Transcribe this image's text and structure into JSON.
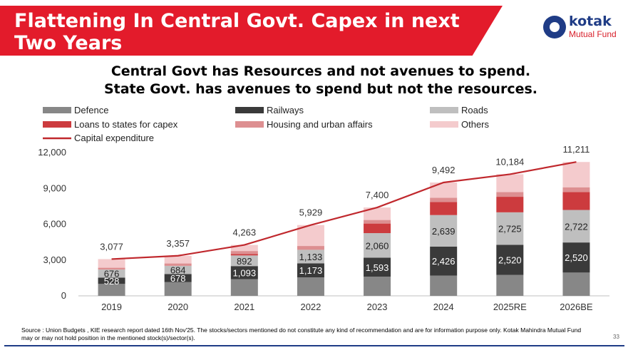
{
  "header": {
    "title": "Flattening In Central Govt. Capex in next Two Years",
    "logo_brand": "kotak",
    "logo_sub": "Mutual Fund"
  },
  "subtitle": {
    "line1": "Central Govt has Resources and not avenues to spend.",
    "line2": "State  Govt. has avenues to spend but not the resources."
  },
  "chart_data": {
    "type": "bar",
    "stacked": true,
    "categories": [
      "2019",
      "2020",
      "2021",
      "2022",
      "2023",
      "2024",
      "2025RE",
      "2026BE"
    ],
    "ylim": [
      0,
      12000
    ],
    "yticks": [
      "0",
      "3,000",
      "6,000",
      "9,000",
      "12,000"
    ],
    "ytick_values": [
      0,
      3000,
      6000,
      9000,
      12000
    ],
    "series": [
      {
        "name": "Defence",
        "color": "#878787",
        "values": [
          1000,
          1150,
          1400,
          1550,
          1600,
          1700,
          1750,
          1950
        ]
      },
      {
        "name": "Railways",
        "color": "#3a3a3a",
        "values": [
          528,
          678,
          1093,
          1173,
          1593,
          2426,
          2520,
          2520
        ],
        "labels": [
          "528",
          "678",
          "1,093",
          "1,173",
          "1,593",
          "2,426",
          "2,520",
          "2,520"
        ],
        "label_color": "#ffffff"
      },
      {
        "name": "Roads",
        "color": "#bfbfbf",
        "values": [
          676,
          684,
          892,
          1133,
          2060,
          2639,
          2725,
          2722
        ],
        "labels": [
          "676",
          "684",
          "892",
          "1,133",
          "2,060",
          "2,639",
          "2,725",
          "2,722"
        ],
        "label_color": "#222222"
      },
      {
        "name": "Loans to states for capex",
        "color": "#cc3b3e",
        "values": [
          0,
          0,
          120,
          0,
          800,
          1100,
          1300,
          1500
        ]
      },
      {
        "name": "Housing and urban affairs",
        "color": "#dd8f91",
        "values": [
          150,
          200,
          250,
          320,
          300,
          350,
          400,
          400
        ]
      },
      {
        "name": "Others",
        "color": "#f4cbcd",
        "values": [
          723,
          645,
          508,
          1753,
          1047,
          1277,
          1489,
          2119
        ]
      }
    ],
    "line": {
      "name": "Capital expenditure",
      "color": "#c0282d",
      "values": [
        3077,
        3357,
        4263,
        5929,
        7400,
        9492,
        10184,
        11211
      ],
      "labels": [
        "3,077",
        "3,357",
        "4,263",
        "5,929",
        "7,400",
        "9,492",
        "10,184",
        "11,211"
      ]
    }
  },
  "footer": {
    "source": "Source : Union Budgets , KIE research report dated 16th Nov'25. The stocks/sectors mentioned do not constitute any kind of recommendation and are for information purpose only. Kotak Mahindra Mutual Fund may or may not hold position in the mentioned stock(s)/sector(s).",
    "page": "33"
  }
}
